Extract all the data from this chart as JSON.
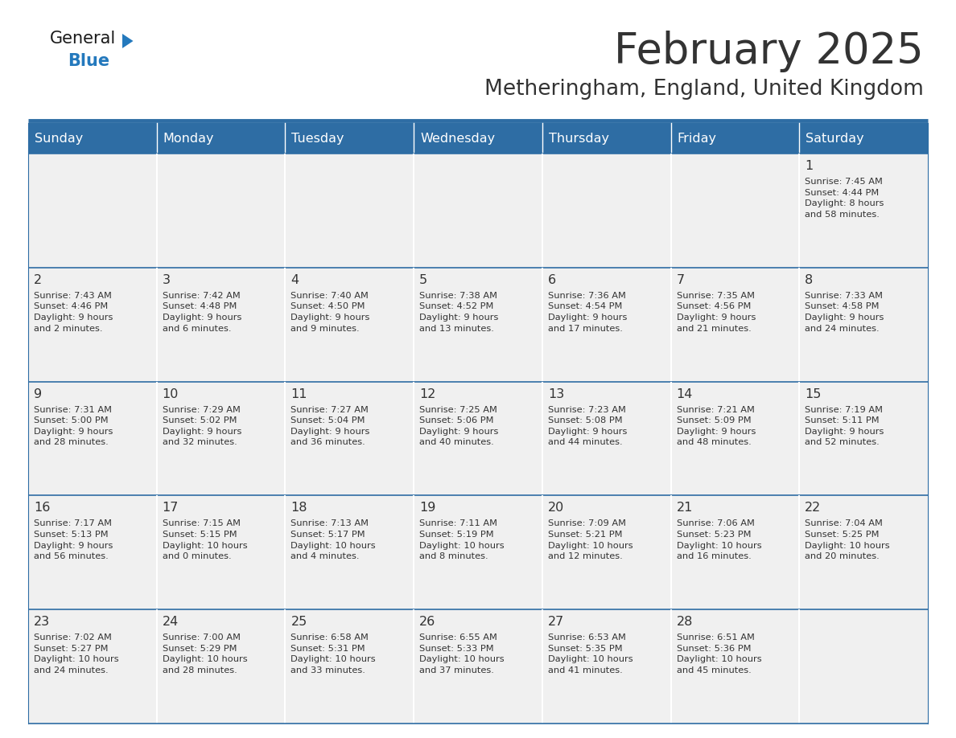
{
  "title": "February 2025",
  "subtitle": "Metheringham, England, United Kingdom",
  "header_bg": "#2E6DA4",
  "header_text_color": "#FFFFFF",
  "cell_bg": "#F0F0F0",
  "line_color": "#2E6DA4",
  "text_color": "#333333",
  "day_headers": [
    "Sunday",
    "Monday",
    "Tuesday",
    "Wednesday",
    "Thursday",
    "Friday",
    "Saturday"
  ],
  "weeks": [
    [
      {
        "day": "",
        "info": ""
      },
      {
        "day": "",
        "info": ""
      },
      {
        "day": "",
        "info": ""
      },
      {
        "day": "",
        "info": ""
      },
      {
        "day": "",
        "info": ""
      },
      {
        "day": "",
        "info": ""
      },
      {
        "day": "1",
        "info": "Sunrise: 7:45 AM\nSunset: 4:44 PM\nDaylight: 8 hours\nand 58 minutes."
      }
    ],
    [
      {
        "day": "2",
        "info": "Sunrise: 7:43 AM\nSunset: 4:46 PM\nDaylight: 9 hours\nand 2 minutes."
      },
      {
        "day": "3",
        "info": "Sunrise: 7:42 AM\nSunset: 4:48 PM\nDaylight: 9 hours\nand 6 minutes."
      },
      {
        "day": "4",
        "info": "Sunrise: 7:40 AM\nSunset: 4:50 PM\nDaylight: 9 hours\nand 9 minutes."
      },
      {
        "day": "5",
        "info": "Sunrise: 7:38 AM\nSunset: 4:52 PM\nDaylight: 9 hours\nand 13 minutes."
      },
      {
        "day": "6",
        "info": "Sunrise: 7:36 AM\nSunset: 4:54 PM\nDaylight: 9 hours\nand 17 minutes."
      },
      {
        "day": "7",
        "info": "Sunrise: 7:35 AM\nSunset: 4:56 PM\nDaylight: 9 hours\nand 21 minutes."
      },
      {
        "day": "8",
        "info": "Sunrise: 7:33 AM\nSunset: 4:58 PM\nDaylight: 9 hours\nand 24 minutes."
      }
    ],
    [
      {
        "day": "9",
        "info": "Sunrise: 7:31 AM\nSunset: 5:00 PM\nDaylight: 9 hours\nand 28 minutes."
      },
      {
        "day": "10",
        "info": "Sunrise: 7:29 AM\nSunset: 5:02 PM\nDaylight: 9 hours\nand 32 minutes."
      },
      {
        "day": "11",
        "info": "Sunrise: 7:27 AM\nSunset: 5:04 PM\nDaylight: 9 hours\nand 36 minutes."
      },
      {
        "day": "12",
        "info": "Sunrise: 7:25 AM\nSunset: 5:06 PM\nDaylight: 9 hours\nand 40 minutes."
      },
      {
        "day": "13",
        "info": "Sunrise: 7:23 AM\nSunset: 5:08 PM\nDaylight: 9 hours\nand 44 minutes."
      },
      {
        "day": "14",
        "info": "Sunrise: 7:21 AM\nSunset: 5:09 PM\nDaylight: 9 hours\nand 48 minutes."
      },
      {
        "day": "15",
        "info": "Sunrise: 7:19 AM\nSunset: 5:11 PM\nDaylight: 9 hours\nand 52 minutes."
      }
    ],
    [
      {
        "day": "16",
        "info": "Sunrise: 7:17 AM\nSunset: 5:13 PM\nDaylight: 9 hours\nand 56 minutes."
      },
      {
        "day": "17",
        "info": "Sunrise: 7:15 AM\nSunset: 5:15 PM\nDaylight: 10 hours\nand 0 minutes."
      },
      {
        "day": "18",
        "info": "Sunrise: 7:13 AM\nSunset: 5:17 PM\nDaylight: 10 hours\nand 4 minutes."
      },
      {
        "day": "19",
        "info": "Sunrise: 7:11 AM\nSunset: 5:19 PM\nDaylight: 10 hours\nand 8 minutes."
      },
      {
        "day": "20",
        "info": "Sunrise: 7:09 AM\nSunset: 5:21 PM\nDaylight: 10 hours\nand 12 minutes."
      },
      {
        "day": "21",
        "info": "Sunrise: 7:06 AM\nSunset: 5:23 PM\nDaylight: 10 hours\nand 16 minutes."
      },
      {
        "day": "22",
        "info": "Sunrise: 7:04 AM\nSunset: 5:25 PM\nDaylight: 10 hours\nand 20 minutes."
      }
    ],
    [
      {
        "day": "23",
        "info": "Sunrise: 7:02 AM\nSunset: 5:27 PM\nDaylight: 10 hours\nand 24 minutes."
      },
      {
        "day": "24",
        "info": "Sunrise: 7:00 AM\nSunset: 5:29 PM\nDaylight: 10 hours\nand 28 minutes."
      },
      {
        "day": "25",
        "info": "Sunrise: 6:58 AM\nSunset: 5:31 PM\nDaylight: 10 hours\nand 33 minutes."
      },
      {
        "day": "26",
        "info": "Sunrise: 6:55 AM\nSunset: 5:33 PM\nDaylight: 10 hours\nand 37 minutes."
      },
      {
        "day": "27",
        "info": "Sunrise: 6:53 AM\nSunset: 5:35 PM\nDaylight: 10 hours\nand 41 minutes."
      },
      {
        "day": "28",
        "info": "Sunrise: 6:51 AM\nSunset: 5:36 PM\nDaylight: 10 hours\nand 45 minutes."
      },
      {
        "day": "",
        "info": ""
      }
    ]
  ],
  "logo_general_color": "#1a1a1a",
  "logo_blue_color": "#2479BD",
  "logo_triangle_color": "#2479BD",
  "fig_width": 11.88,
  "fig_height": 9.18,
  "dpi": 100
}
